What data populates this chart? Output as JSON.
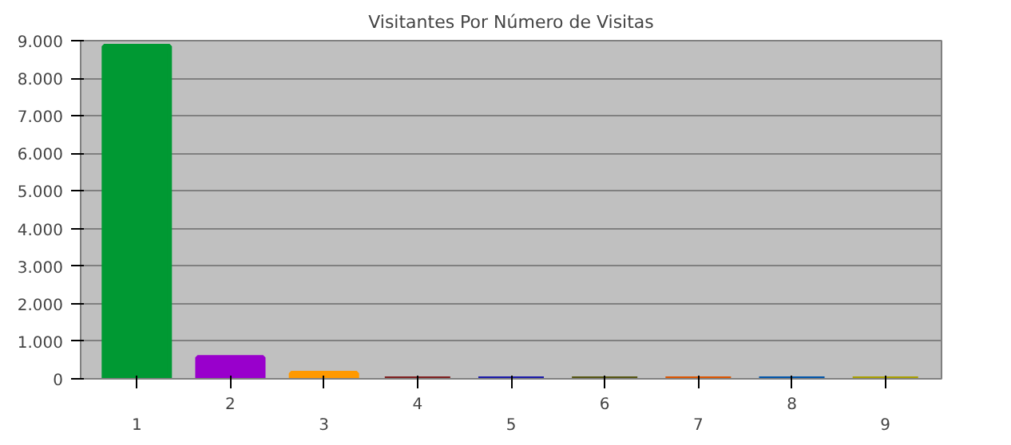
{
  "chart_data": {
    "type": "bar",
    "title": "Visitantes Por Número de Visitas",
    "categories": [
      "1",
      "2",
      "3",
      "4",
      "5",
      "6",
      "7",
      "8",
      "9"
    ],
    "values": [
      8850,
      570,
      150,
      0,
      0,
      0,
      0,
      0,
      0
    ],
    "colors": [
      "#009933",
      "#9900cc",
      "#ff9900",
      "#7f1f1f",
      "#1a1aaa",
      "#555511",
      "#dd5500",
      "#0055aa",
      "#aaa000"
    ],
    "ylim": [
      0,
      9000
    ],
    "yticks": [
      {
        "value": 0,
        "label": "0"
      },
      {
        "value": 1000,
        "label": "1.000"
      },
      {
        "value": 2000,
        "label": "2.000"
      },
      {
        "value": 3000,
        "label": "3.000"
      },
      {
        "value": 4000,
        "label": "4.000"
      },
      {
        "value": 5000,
        "label": "5.000"
      },
      {
        "value": 6000,
        "label": "6.000"
      },
      {
        "value": 7000,
        "label": "7.000"
      },
      {
        "value": 8000,
        "label": "8.000"
      },
      {
        "value": 9000,
        "label": "9.000"
      }
    ],
    "grid": "y"
  }
}
